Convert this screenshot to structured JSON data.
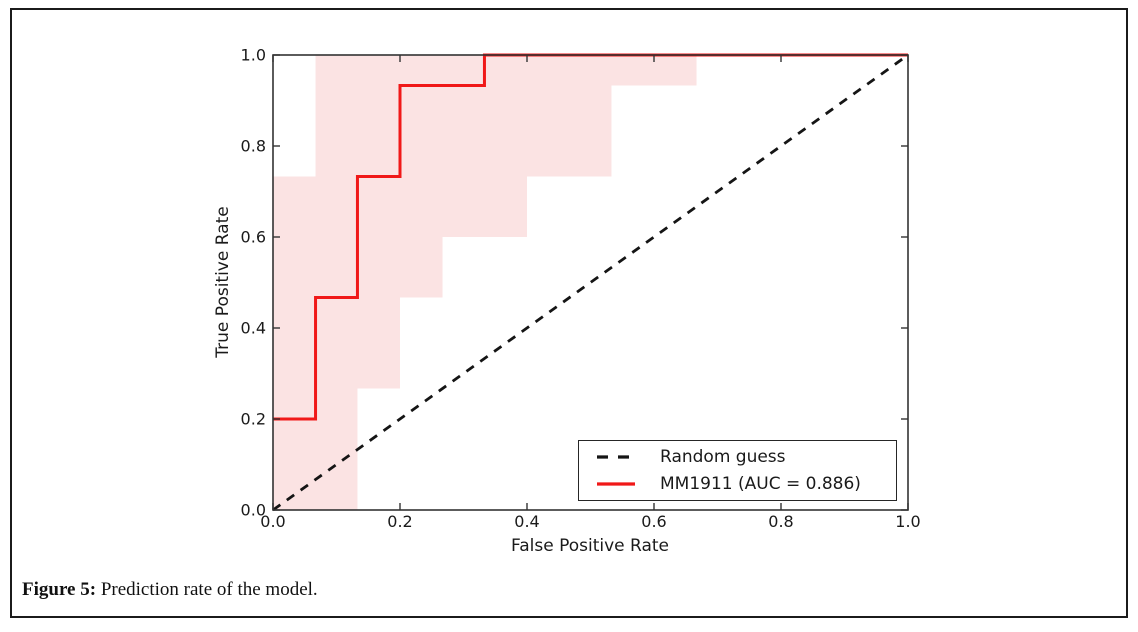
{
  "figure": {
    "caption_label": "Figure 5:",
    "caption_text": " Prediction rate of the model."
  },
  "colors": {
    "curve_red": "#f01818",
    "band_pink": "#fbe3e3",
    "dashed_black": "#151515",
    "frame_gray": "#333333",
    "text": "#1a1a1a"
  },
  "chart_data": {
    "type": "line",
    "title": "",
    "xlabel": "False Positive Rate",
    "ylabel": "True Positive Rate",
    "xlim": [
      0.0,
      1.0
    ],
    "ylim": [
      0.0,
      1.0
    ],
    "grid": false,
    "tick_style": "inward, all four sides",
    "x_ticks": [
      0.0,
      0.2,
      0.4,
      0.6,
      0.8,
      1.0
    ],
    "y_ticks": [
      0.0,
      0.2,
      0.4,
      0.6,
      0.8,
      1.0
    ],
    "x_tick_labels": [
      "0.0",
      "0.2",
      "0.4",
      "0.6",
      "0.8",
      "1.0"
    ],
    "y_tick_labels": [
      "0.0",
      "0.2",
      "0.4",
      "0.6",
      "0.8",
      "1.0"
    ],
    "auc": 0.886,
    "legend": {
      "position": "lower right",
      "entries": [
        "Random guess",
        "MM1911 (AUC = 0.886)"
      ]
    },
    "series": [
      {
        "name": "Random guess",
        "style": "dashed",
        "color": "#151515",
        "width": 2.8,
        "points": [
          [
            0.0,
            0.0
          ],
          [
            1.0,
            1.0
          ]
        ]
      },
      {
        "name": "MM1911 (AUC = 0.886)",
        "style": "solid",
        "color": "#f01818",
        "width": 3,
        "points": [
          [
            0.0,
            0.2
          ],
          [
            0.067,
            0.2
          ],
          [
            0.067,
            0.467
          ],
          [
            0.133,
            0.467
          ],
          [
            0.133,
            0.733
          ],
          [
            0.2,
            0.733
          ],
          [
            0.2,
            0.933
          ],
          [
            0.333,
            0.933
          ],
          [
            0.333,
            1.0
          ],
          [
            1.0,
            1.0
          ]
        ]
      }
    ],
    "confidence_band": {
      "color": "#fbe3e3",
      "upper": [
        [
          0.0,
          0.733
        ],
        [
          0.067,
          0.733
        ],
        [
          0.067,
          1.0
        ],
        [
          0.667,
          1.0
        ]
      ],
      "lower": [
        [
          0.0,
          0.0
        ],
        [
          0.133,
          0.0
        ],
        [
          0.133,
          0.267
        ],
        [
          0.2,
          0.267
        ],
        [
          0.2,
          0.467
        ],
        [
          0.267,
          0.467
        ],
        [
          0.267,
          0.6
        ],
        [
          0.4,
          0.6
        ],
        [
          0.4,
          0.733
        ],
        [
          0.533,
          0.733
        ],
        [
          0.533,
          0.933
        ],
        [
          0.667,
          0.933
        ],
        [
          0.667,
          1.0
        ]
      ]
    }
  }
}
